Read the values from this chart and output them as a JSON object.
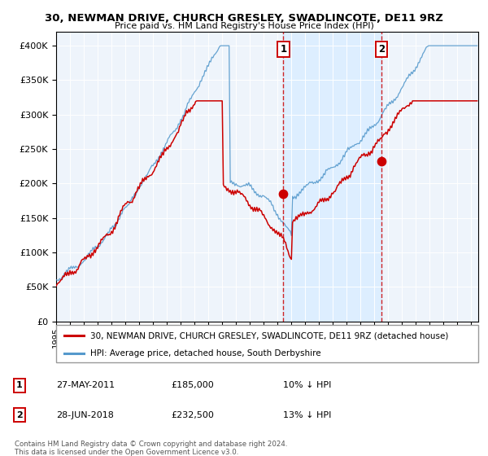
{
  "title": "30, NEWMAN DRIVE, CHURCH GRESLEY, SWADLINCOTE, DE11 9RZ",
  "subtitle": "Price paid vs. HM Land Registry's House Price Index (HPI)",
  "legend_line1": "30, NEWMAN DRIVE, CHURCH GRESLEY, SWADLINCOTE, DE11 9RZ (detached house)",
  "legend_line2": "HPI: Average price, detached house, South Derbyshire",
  "footnote": "Contains HM Land Registry data © Crown copyright and database right 2024.\nThis data is licensed under the Open Government Licence v3.0.",
  "sale1_date": "27-MAY-2011",
  "sale1_price": "£185,000",
  "sale1_hpi": "10% ↓ HPI",
  "sale2_date": "28-JUN-2018",
  "sale2_price": "£232,500",
  "sale2_hpi": "13% ↓ HPI",
  "vline1_x": 2011.42,
  "vline2_x": 2018.5,
  "sale1_point_x": 2011.42,
  "sale1_point_y": 185000,
  "sale2_point_x": 2018.5,
  "sale2_point_y": 232500,
  "red_color": "#cc0000",
  "blue_color": "#5599cc",
  "shade_color": "#ddeeff",
  "background_color": "#eef4fb",
  "ylim": [
    0,
    420000
  ],
  "xlim_start": 1995.0,
  "xlim_end": 2025.5
}
